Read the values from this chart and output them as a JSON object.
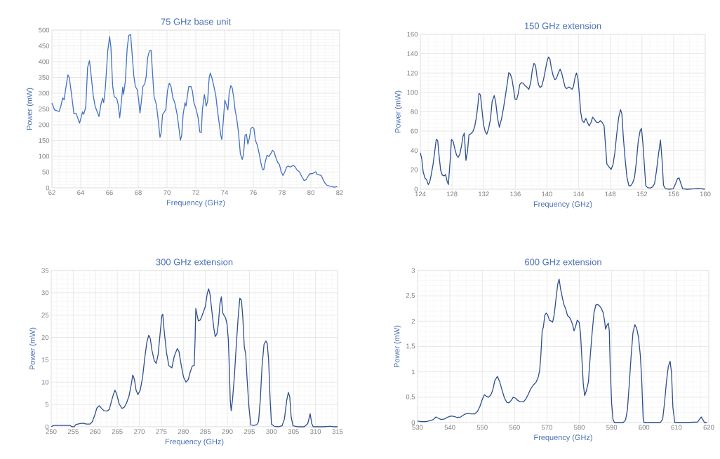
{
  "chart_data": [
    {
      "type": "line",
      "title": "75 GHz base unit",
      "xlabel": "Frequency (GHz)",
      "ylabel": "Power (mW)",
      "grid": true,
      "xlim": [
        62,
        82
      ],
      "xticks": [
        62,
        64,
        66,
        68,
        70,
        72,
        74,
        76,
        78,
        80,
        82
      ],
      "ylim": [
        0,
        500
      ],
      "yticks": [
        0,
        50,
        100,
        150,
        200,
        250,
        300,
        350,
        400,
        450,
        500
      ],
      "x": [
        62.0,
        62.18,
        62.5,
        62.62,
        62.75,
        62.85,
        62.96,
        63.11,
        63.21,
        63.37,
        63.53,
        63.69,
        63.92,
        64.02,
        64.13,
        64.21,
        64.35,
        64.48,
        64.61,
        64.7,
        64.87,
        65.0,
        65.27,
        65.4,
        65.52,
        65.6,
        65.71,
        65.88,
        66.01,
        66.1,
        66.22,
        66.33,
        66.5,
        66.61,
        66.71,
        66.82,
        66.92,
        66.98,
        67.1,
        67.23,
        67.34,
        67.47,
        67.57,
        67.69,
        67.8,
        67.93,
        68.03,
        68.12,
        68.21,
        68.32,
        68.45,
        68.55,
        68.65,
        68.78,
        68.89,
        69.02,
        69.1,
        69.26,
        69.38,
        69.51,
        69.59,
        69.69,
        69.92,
        70.03,
        70.16,
        70.27,
        70.41,
        70.54,
        70.7,
        70.81,
        70.93,
        71.02,
        71.12,
        71.25,
        71.32,
        71.42,
        71.51,
        71.66,
        71.76,
        71.87,
        72.03,
        72.16,
        72.28,
        72.38,
        72.46,
        72.6,
        72.72,
        72.82,
        72.93,
        73.01,
        73.14,
        73.26,
        73.39,
        73.5,
        73.63,
        73.74,
        73.81,
        73.91,
        74.02,
        74.15,
        74.23,
        74.32,
        74.43,
        74.53,
        74.64,
        74.74,
        74.84,
        74.97,
        75.1,
        75.23,
        75.32,
        75.42,
        75.52,
        75.62,
        75.73,
        75.83,
        75.94,
        76.04,
        76.14,
        76.27,
        76.4,
        76.53,
        76.63,
        76.72,
        76.84,
        76.95,
        77.08,
        77.21,
        77.33,
        77.44,
        77.57,
        77.7,
        77.82,
        77.93,
        78.06,
        78.19,
        78.32,
        78.42,
        78.55,
        78.65,
        78.79,
        78.91,
        79.04,
        79.2,
        79.36,
        79.53,
        79.66,
        79.79,
        79.94,
        80.1,
        80.23,
        80.34,
        80.44,
        80.59,
        80.72,
        80.83,
        80.96,
        81.12,
        81.32,
        81.65,
        81.84
      ],
      "series": [
        {
          "color": "#4472c4",
          "values": [
            269,
            247,
            242,
            259,
            285,
            279,
            315,
            358,
            349,
            293,
            235,
            235,
            205,
            222,
            241,
            233,
            256,
            382,
            403,
            367,
            293,
            259,
            226,
            263,
            284,
            270,
            315,
            434,
            479,
            446,
            323,
            289,
            284,
            263,
            222,
            270,
            319,
            297,
            337,
            442,
            483,
            486,
            427,
            356,
            321,
            311,
            278,
            237,
            270,
            321,
            330,
            352,
            412,
            434,
            436,
            345,
            289,
            263,
            218,
            160,
            174,
            232,
            248,
            308,
            332,
            323,
            285,
            270,
            233,
            196,
            151,
            166,
            233,
            270,
            259,
            293,
            321,
            321,
            308,
            270,
            248,
            222,
            177,
            175,
            248,
            296,
            259,
            274,
            349,
            364,
            345,
            321,
            293,
            248,
            203,
            166,
            153,
            211,
            278,
            259,
            247,
            300,
            324,
            317,
            285,
            244,
            222,
            174,
            107,
            90,
            107,
            166,
            170,
            138,
            159,
            188,
            192,
            188,
            151,
            136,
            110,
            78,
            58,
            57,
            84,
            103,
            99,
            108,
            119,
            114,
            95,
            80,
            73,
            51,
            39,
            51,
            66,
            69,
            66,
            68,
            71,
            66,
            56,
            51,
            36,
            23,
            25,
            36,
            45,
            45,
            48,
            51,
            42,
            41,
            39,
            28,
            16,
            8,
            5,
            2,
            4
          ]
        }
      ]
    },
    {
      "type": "line",
      "title": "150 GHz extension",
      "xlabel": "Frequency (GHz)",
      "ylabel": "Power (mW)",
      "grid": true,
      "xlim": [
        124,
        160
      ],
      "xticks": [
        124,
        128,
        132,
        136,
        140,
        144,
        148,
        152,
        156,
        160
      ],
      "ylim": [
        0,
        160
      ],
      "yticks": [
        0,
        20,
        40,
        60,
        80,
        100,
        120,
        140,
        160
      ],
      "x": [
        124.0,
        124.18,
        124.35,
        124.59,
        124.8,
        125.0,
        125.18,
        125.39,
        125.6,
        125.83,
        126.01,
        126.19,
        126.36,
        126.57,
        126.78,
        127.01,
        127.19,
        127.37,
        127.54,
        127.75,
        127.93,
        128.14,
        128.34,
        128.58,
        128.79,
        128.99,
        129.2,
        129.38,
        129.55,
        129.76,
        129.97,
        130.14,
        130.38,
        130.62,
        130.85,
        131.09,
        131.27,
        131.41,
        131.59,
        131.77,
        131.98,
        132.21,
        132.39,
        132.63,
        132.86,
        133.07,
        133.33,
        133.51,
        133.75,
        133.98,
        134.25,
        134.52,
        134.75,
        134.99,
        135.17,
        135.37,
        135.58,
        135.79,
        135.96,
        136.17,
        136.38,
        136.55,
        136.76,
        137.0,
        137.2,
        137.44,
        137.71,
        137.94,
        138.15,
        138.36,
        138.56,
        138.74,
        138.95,
        139.12,
        139.33,
        139.57,
        139.77,
        139.98,
        140.19,
        140.37,
        140.54,
        140.78,
        140.99,
        141.19,
        141.43,
        141.66,
        141.87,
        142.08,
        142.28,
        142.49,
        142.73,
        142.96,
        143.17,
        143.35,
        143.56,
        143.73,
        143.91,
        144.09,
        144.26,
        144.44,
        144.68,
        144.91,
        145.09,
        145.33,
        145.56,
        145.77,
        145.98,
        146.21,
        146.51,
        146.75,
        146.98,
        147.22,
        147.4,
        147.57,
        147.84,
        148.1,
        148.34,
        148.57,
        148.81,
        149.05,
        149.29,
        149.46,
        149.64,
        149.88,
        150.11,
        150.35,
        150.59,
        150.82,
        151.06,
        151.29,
        151.53,
        151.77,
        151.94,
        152.12,
        152.3,
        152.48,
        152.71,
        153.01,
        153.36,
        153.6,
        153.84,
        154.07,
        154.34,
        154.54,
        154.72,
        154.96,
        155.37,
        155.96,
        156.26,
        156.49,
        156.7,
        156.91,
        157.14,
        157.73,
        158.62,
        159.06,
        159.51,
        159.95
      ],
      "series": [
        {
          "color": "#2f4f8f",
          "values": [
            37.5,
            31.4,
            18.1,
            11.4,
            9.7,
            4.8,
            7.3,
            15.7,
            25.4,
            39.9,
            51.5,
            50.3,
            35.0,
            19.3,
            14.5,
            13.8,
            15.2,
            8.5,
            4.8,
            27.8,
            51.5,
            49.5,
            42.3,
            35.0,
            33.1,
            36.3,
            44.7,
            54.4,
            58.0,
            29.7,
            39.9,
            56.3,
            57.3,
            59.2,
            64.0,
            74.9,
            87.0,
            99.1,
            97.4,
            83.4,
            66.5,
            59.2,
            56.8,
            62.8,
            72.5,
            90.6,
            96.7,
            90.6,
            73.7,
            64.0,
            72.5,
            84.6,
            96.7,
            110.0,
            120.4,
            118.9,
            113.6,
            102.7,
            93.1,
            92.6,
            99.1,
            108.0,
            110.0,
            109.5,
            107.1,
            105.6,
            103.2,
            110.0,
            123.3,
            130.0,
            127.6,
            116.0,
            107.6,
            105.1,
            106.3,
            113.6,
            122.1,
            131.0,
            136.6,
            134.6,
            125.7,
            117.2,
            113.1,
            114.3,
            120.1,
            124.0,
            119.6,
            112.4,
            105.6,
            103.9,
            105.6,
            104.7,
            103.2,
            106.3,
            116.0,
            120.1,
            114.3,
            97.9,
            79.8,
            70.8,
            68.9,
            73.2,
            69.4,
            65.3,
            68.9,
            74.4,
            72.5,
            69.4,
            68.9,
            70.8,
            68.9,
            65.3,
            44.7,
            25.9,
            23.0,
            20.5,
            25.4,
            37.5,
            56.8,
            73.7,
            82.2,
            78.1,
            54.4,
            30.2,
            12.1,
            3.6,
            3.6,
            6.5,
            12.1,
            27.8,
            49.5,
            60.4,
            62.8,
            47.1,
            25.4,
            3.6,
            1.7,
            1.2,
            2.4,
            6.0,
            19.3,
            35.0,
            50.8,
            30.2,
            4.1,
            0.5,
            0,
            0.5,
            6.0,
            10.9,
            11.6,
            6.0,
            0.5,
            0,
            0.5,
            1.0,
            0.5,
            0
          ]
        }
      ]
    },
    {
      "type": "line",
      "title": "300 GHz extension",
      "xlabel": "Frequency (GHz)",
      "ylabel": "Power (mW)",
      "grid": true,
      "xlim": [
        250,
        315
      ],
      "xticks": [
        250,
        255,
        260,
        265,
        270,
        275,
        280,
        285,
        290,
        295,
        300,
        305,
        310,
        315
      ],
      "ylim": [
        0,
        35
      ],
      "yticks": [
        0,
        5,
        10,
        15,
        20,
        25,
        30,
        35
      ],
      "x": [
        250.0,
        250.53,
        251.33,
        252.66,
        254.26,
        254.68,
        255.21,
        255.58,
        256.38,
        257.18,
        257.98,
        258.78,
        259.31,
        259.84,
        260.37,
        260.9,
        261.44,
        261.97,
        262.66,
        263.19,
        263.72,
        264.1,
        264.47,
        264.89,
        265.43,
        266.06,
        266.6,
        267.13,
        267.66,
        268.19,
        268.51,
        268.88,
        269.26,
        269.68,
        270.21,
        270.74,
        271.28,
        271.7,
        272.13,
        272.5,
        272.87,
        273.4,
        273.83,
        274.26,
        274.73,
        275.11,
        275.32,
        275.64,
        276.17,
        276.7,
        277.39,
        277.93,
        278.62,
        278.99,
        279.52,
        280.05,
        280.59,
        281.12,
        281.54,
        282.02,
        282.45,
        282.66,
        282.82,
        283.08,
        283.4,
        283.83,
        284.26,
        284.68,
        285.0,
        285.43,
        285.74,
        286.06,
        286.49,
        286.91,
        287.23,
        287.61,
        287.93,
        288.3,
        288.62,
        288.94,
        289.26,
        289.57,
        289.89,
        290.21,
        290.43,
        290.64,
        290.85,
        291.17,
        291.6,
        292.02,
        292.45,
        292.82,
        293.19,
        293.51,
        293.83,
        294.15,
        294.47,
        294.89,
        295.32,
        296.01,
        296.7,
        297.07,
        297.45,
        297.87,
        298.3,
        298.72,
        299.04,
        299.36,
        299.68,
        300.0,
        300.64,
        301.6,
        302.39,
        302.93,
        303.46,
        303.83,
        304.15,
        304.47,
        304.89,
        305.85,
        307.45,
        308.24,
        308.78,
        309.15,
        309.47,
        311.7,
        313.03,
        313.56,
        314.1,
        315.0
      ],
      "series": [
        {
          "color": "#2f4f8f",
          "values": [
            0,
            0.3,
            0.3,
            0.3,
            0.3,
            0,
            0,
            0.5,
            0.7,
            0.8,
            0.6,
            0.6,
            1.1,
            2.5,
            4.2,
            4.7,
            4.1,
            3.6,
            3.5,
            3.9,
            5.9,
            7.2,
            8.2,
            7.2,
            5.1,
            4.1,
            4.4,
            5.4,
            6.9,
            9.6,
            11.6,
            10.6,
            8.2,
            7.2,
            8.2,
            11.1,
            15.8,
            18.9,
            20.5,
            19.7,
            17.1,
            14.8,
            14.2,
            16.1,
            21.0,
            24.9,
            25.2,
            21.5,
            16.6,
            13.7,
            13.2,
            15.8,
            17.5,
            16.9,
            13.7,
            11.1,
            10.0,
            10.6,
            12.2,
            13.6,
            13.7,
            19.5,
            26.5,
            25.2,
            23.7,
            23.9,
            24.9,
            26.1,
            27.0,
            29.9,
            30.9,
            29.6,
            25.7,
            22.1,
            20.2,
            20.8,
            22.9,
            27.5,
            29.1,
            25.5,
            24.9,
            24.4,
            23.1,
            19.5,
            13.2,
            5.9,
            3.6,
            6.2,
            11.6,
            18.4,
            24.7,
            28.8,
            28.3,
            24.2,
            17.9,
            16.3,
            10.6,
            4.3,
            0.4,
            0.3,
            0.5,
            1.2,
            5.9,
            13.7,
            18.4,
            19.2,
            18.7,
            14.8,
            6.4,
            0.6,
            0.1,
            0,
            0.2,
            1.7,
            5.9,
            7.7,
            6.7,
            2.2,
            0.2,
            0,
            0,
            0.7,
            2.9,
            0.7,
            0,
            0,
            0.1,
            0.1,
            0,
            0
          ]
        }
      ]
    },
    {
      "type": "line",
      "title": "600 GHz extension",
      "xlabel": "Frequency (GHz)",
      "ylabel": "Power (mW)",
      "grid": true,
      "xlim": [
        530,
        620
      ],
      "xticks": [
        530,
        540,
        550,
        560,
        570,
        580,
        590,
        600,
        610,
        620
      ],
      "ylim": [
        0,
        3
      ],
      "yticks": [
        0,
        {
          "value": 0.5,
          "label": "0,5"
        },
        1,
        {
          "value": 1.5,
          "label": "1,5"
        },
        2,
        {
          "value": 2.5,
          "label": "2,5"
        },
        3
      ],
      "x": [
        530.0,
        531.15,
        532.58,
        534.02,
        534.88,
        535.67,
        536.31,
        537.25,
        538.32,
        539.4,
        540.47,
        541.33,
        542.27,
        543.34,
        544.42,
        545.5,
        546.57,
        547.65,
        548.51,
        549.23,
        550.02,
        550.66,
        551.24,
        551.95,
        552.67,
        553.24,
        553.89,
        554.68,
        555.4,
        556.11,
        556.83,
        557.55,
        558.27,
        558.99,
        559.56,
        560.28,
        560.93,
        561.64,
        562.71,
        563.43,
        564.15,
        565.01,
        565.94,
        566.66,
        567.31,
        567.74,
        568.09,
        568.52,
        568.88,
        569.31,
        569.74,
        570.17,
        570.75,
        571.32,
        571.75,
        572.26,
        572.76,
        573.33,
        573.76,
        574.19,
        574.77,
        575.27,
        575.77,
        576.34,
        576.92,
        577.42,
        577.92,
        578.35,
        578.78,
        579.36,
        579.93,
        580.36,
        580.79,
        581.22,
        581.65,
        582.23,
        582.8,
        583.37,
        583.95,
        584.52,
        585.1,
        585.67,
        586.24,
        586.82,
        587.39,
        587.82,
        588.11,
        588.54,
        588.97,
        589.26,
        589.54,
        589.97,
        590.4,
        590.83,
        592.13,
        593.56,
        594.28,
        594.85,
        595.43,
        596.0,
        596.57,
        597.15,
        597.72,
        598.29,
        598.87,
        599.3,
        599.73,
        600.01,
        602.89,
        605.04,
        605.76,
        606.33,
        606.91,
        607.48,
        608.05,
        608.48,
        608.91,
        609.49,
        612.93,
        616.52,
        617.09,
        617.67,
        618.24,
        618.67,
        619.39
      ],
      "series": [
        {
          "color": "#2f4f8f",
          "values": [
            0.03,
            0.02,
            0.02,
            0.04,
            0.06,
            0.11,
            0.09,
            0.06,
            0.07,
            0.11,
            0.13,
            0.12,
            0.1,
            0.11,
            0.16,
            0.18,
            0.17,
            0.17,
            0.22,
            0.31,
            0.46,
            0.55,
            0.52,
            0.5,
            0.55,
            0.64,
            0.83,
            0.91,
            0.8,
            0.64,
            0.49,
            0.4,
            0.39,
            0.44,
            0.5,
            0.48,
            0.44,
            0.41,
            0.41,
            0.46,
            0.55,
            0.67,
            0.75,
            0.8,
            0.9,
            1.03,
            1.31,
            1.81,
            1.88,
            2.11,
            2.16,
            2.13,
            2.02,
            2.0,
            1.98,
            2.14,
            2.43,
            2.73,
            2.83,
            2.64,
            2.46,
            2.32,
            2.25,
            2.11,
            2.08,
            2.02,
            1.93,
            1.81,
            1.88,
            2.02,
            1.98,
            1.77,
            1.26,
            0.76,
            0.53,
            0.64,
            0.8,
            1.31,
            1.77,
            2.16,
            2.32,
            2.33,
            2.3,
            2.25,
            2.16,
            2.0,
            1.84,
            1.92,
            1.96,
            1.81,
            1.08,
            0.39,
            0.06,
            0,
            0,
            0,
            0.05,
            0.25,
            0.76,
            1.31,
            1.77,
            1.93,
            1.86,
            1.68,
            1.31,
            0.8,
            0.07,
            0,
            0,
            0,
            0.07,
            0.39,
            0.8,
            1.1,
            1.21,
            0.99,
            0.3,
            0,
            0,
            0.01,
            0.06,
            0.11,
            0.05,
            0,
            0
          ]
        }
      ]
    }
  ]
}
